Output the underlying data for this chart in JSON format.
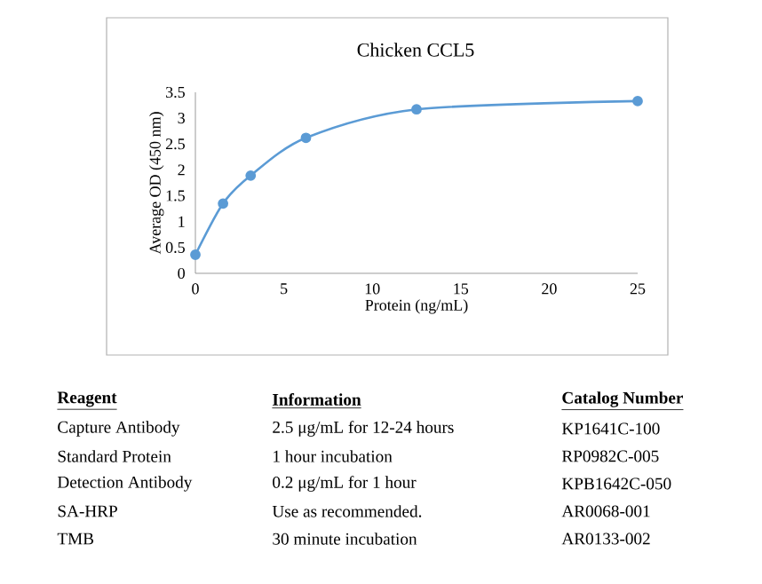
{
  "chart_data": {
    "type": "line",
    "title": "Chicken CCL5",
    "xlabel": "Protein (ng/mL)",
    "ylabel": "Average OD (450 nm)",
    "x": [
      0,
      1.5625,
      3.125,
      6.25,
      12.5,
      25
    ],
    "series": [
      {
        "color": "#5b9bd5",
        "values": [
          0.36,
          1.35,
          1.89,
          2.62,
          3.17,
          3.33
        ]
      }
    ],
    "xlim": [
      0,
      25
    ],
    "xticks": [
      0,
      5,
      10,
      15,
      20,
      25
    ],
    "ylim": [
      0,
      3.5
    ],
    "yticks": [
      0,
      0.5,
      1,
      1.5,
      2,
      2.5,
      3,
      3.5
    ],
    "marker": "circle",
    "line_style": "solid",
    "grid": false,
    "annotations": [
      "Reagent",
      "Information",
      "Catalog Number",
      "Capture Antibody",
      "2.5 μg/mL for 12-24 hours",
      "KP1641C-100",
      "Standard Protein",
      "1 hour incubation",
      "RP0982C-005",
      "Detection Antibody",
      "0.2 μg/mL for 1 hour",
      "KPB1642C-050",
      "SA-HRP",
      "Use as recommended.",
      "AR0068-001",
      "TMB",
      "30 minute incubation",
      "AR0133-002"
    ]
  }
}
